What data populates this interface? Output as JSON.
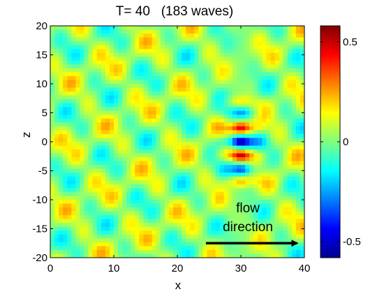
{
  "chart_data": {
    "type": "heatmap",
    "title": "T= 40   (183 waves)",
    "xlabel": "x",
    "ylabel": "z",
    "xlim": [
      0,
      40
    ],
    "ylim": [
      -20,
      20
    ],
    "xticks": [
      "0",
      "10",
      "20",
      "30",
      "40"
    ],
    "yticks": [
      "20",
      "15",
      "10",
      "5",
      "0",
      "-5",
      "-10",
      "-15",
      "-20"
    ],
    "colorbar": {
      "range": [
        -0.58,
        0.58
      ],
      "ticks": [
        "0.5",
        "0",
        "-0.5"
      ],
      "colormap": "jet",
      "colors": [
        "#00008f",
        "#0000ff",
        "#00ffff",
        "#ffff00",
        "#ff0000",
        "#800000"
      ]
    },
    "annotation": {
      "line1": "flow",
      "line2": "direction",
      "arrow_from": [
        24.5,
        -17.5
      ],
      "arrow_to": [
        39.5,
        -17.5
      ]
    },
    "wave_packet": {
      "center_x": 30,
      "center_z": 0,
      "crest_amplitudes": [
        {
          "z": 7.0,
          "value": 0.15
        },
        {
          "z": 5.0,
          "value": -0.25
        },
        {
          "z": 2.4,
          "value": 0.45
        },
        {
          "z": 0.0,
          "value": -0.58
        },
        {
          "z": -2.4,
          "value": 0.5
        },
        {
          "z": -4.8,
          "value": -0.35
        },
        {
          "z": -7.0,
          "value": 0.2
        }
      ]
    },
    "background_field_range": [
      -0.2,
      0.25
    ]
  }
}
